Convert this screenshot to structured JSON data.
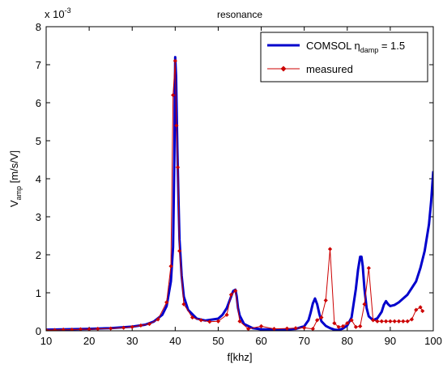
{
  "chart_data": {
    "type": "line",
    "title": "resonance",
    "xlabel": "f[khz]",
    "ylabel": {
      "main": "V",
      "sub": "amp",
      "rest": " [m/s/V]"
    },
    "exponent_label": {
      "base": "x 10",
      "exp": "-3"
    },
    "xlim": [
      10,
      100
    ],
    "ylim": [
      0,
      0.008
    ],
    "x_ticks": [
      10,
      20,
      30,
      40,
      50,
      60,
      70,
      80,
      90,
      100
    ],
    "y_ticks": [
      0,
      0.001,
      0.002,
      0.003,
      0.004,
      0.005,
      0.006,
      0.007,
      0.008
    ],
    "y_tick_labels": [
      "0",
      "1",
      "2",
      "3",
      "4",
      "5",
      "6",
      "7",
      "8"
    ],
    "grid": false,
    "legend_placement": "top-right",
    "legend_entries": [
      {
        "main": "COMSOL η",
        "sub": "damp",
        "rest": " = 1.5"
      },
      {
        "main": "measured",
        "sub": "",
        "rest": ""
      }
    ],
    "series": [
      {
        "color": "#0000cc",
        "marker": "none",
        "x": [
          10,
          15,
          20,
          25,
          30,
          33,
          35,
          37,
          38,
          39,
          39.5,
          39.8,
          40.0,
          40.2,
          40.5,
          40.8,
          41.0,
          41.5,
          42,
          43,
          45,
          47,
          50,
          51,
          52,
          53,
          53.5,
          54.0,
          54.3,
          54.6,
          55,
          56,
          58,
          60,
          65,
          68,
          70,
          71,
          71.5,
          72,
          72.5,
          73,
          73.5,
          74,
          75,
          76,
          77,
          78,
          79,
          80,
          81,
          82,
          82.5,
          83,
          83.3,
          83.6,
          84,
          84.5,
          85,
          86,
          87,
          88,
          88.5,
          89,
          89.5,
          90,
          91,
          92,
          94,
          96,
          97,
          98,
          99,
          99.5,
          100
        ],
        "y": [
          3e-05,
          4e-05,
          5e-05,
          7e-05,
          0.00011,
          0.00016,
          0.00024,
          0.00042,
          0.00065,
          0.0013,
          0.0022,
          0.0045,
          0.0072,
          0.0067,
          0.0048,
          0.0033,
          0.0024,
          0.00145,
          0.0009,
          0.00055,
          0.00032,
          0.00027,
          0.00032,
          0.00042,
          0.0006,
          0.0009,
          0.00105,
          0.00108,
          0.0009,
          0.0006,
          0.0004,
          0.00018,
          7e-05,
          4e-05,
          3e-05,
          5e-05,
          0.00012,
          0.00028,
          0.00048,
          0.00072,
          0.00085,
          0.0007,
          0.00045,
          0.00025,
          0.00013,
          7e-05,
          3e-05,
          2e-05,
          6e-05,
          0.00014,
          0.00035,
          0.0011,
          0.0016,
          0.00195,
          0.00195,
          0.0017,
          0.0011,
          0.0006,
          0.00038,
          0.00028,
          0.00033,
          0.0005,
          0.00068,
          0.00078,
          0.0007,
          0.00065,
          0.00068,
          0.00075,
          0.00095,
          0.0013,
          0.00165,
          0.0021,
          0.0028,
          0.0034,
          0.0042
        ]
      },
      {
        "name": "measured",
        "color": "#cc0000",
        "marker": "diamond",
        "x": [
          10,
          12,
          14,
          16,
          18,
          20,
          22,
          25,
          28,
          30,
          32,
          34,
          36,
          38,
          39,
          39.5,
          40,
          40.3,
          40.6,
          41,
          42,
          44,
          46,
          48,
          50,
          52,
          53,
          54,
          55,
          57,
          60,
          63,
          66,
          68,
          70,
          72,
          73,
          74,
          75,
          76,
          77,
          78,
          79,
          80,
          81,
          82,
          83,
          84,
          85,
          86,
          87,
          88,
          89,
          90,
          91,
          92,
          93,
          94,
          95,
          96,
          97,
          97.5
        ],
        "y": [
          2e-05,
          2e-05,
          3e-05,
          3e-05,
          4e-05,
          4e-05,
          5e-05,
          6e-05,
          8e-05,
          0.0001,
          0.00014,
          0.00018,
          0.0003,
          0.00075,
          0.0017,
          0.0062,
          0.0071,
          0.0054,
          0.0043,
          0.0021,
          0.0007,
          0.00035,
          0.00028,
          0.00024,
          0.00025,
          0.00042,
          0.00095,
          0.00105,
          0.00025,
          5e-05,
          0.00012,
          5e-05,
          6e-05,
          7e-05,
          8e-05,
          5e-05,
          0.00028,
          0.00035,
          0.0008,
          0.00215,
          0.0002,
          0.0001,
          0.00012,
          0.0002,
          0.00028,
          0.0001,
          0.00012,
          0.0007,
          0.00165,
          0.00028,
          0.00025,
          0.00025,
          0.00025,
          0.00025,
          0.00025,
          0.00025,
          0.00025,
          0.00025,
          0.0003,
          0.00055,
          0.00062,
          0.00052
        ]
      }
    ]
  }
}
